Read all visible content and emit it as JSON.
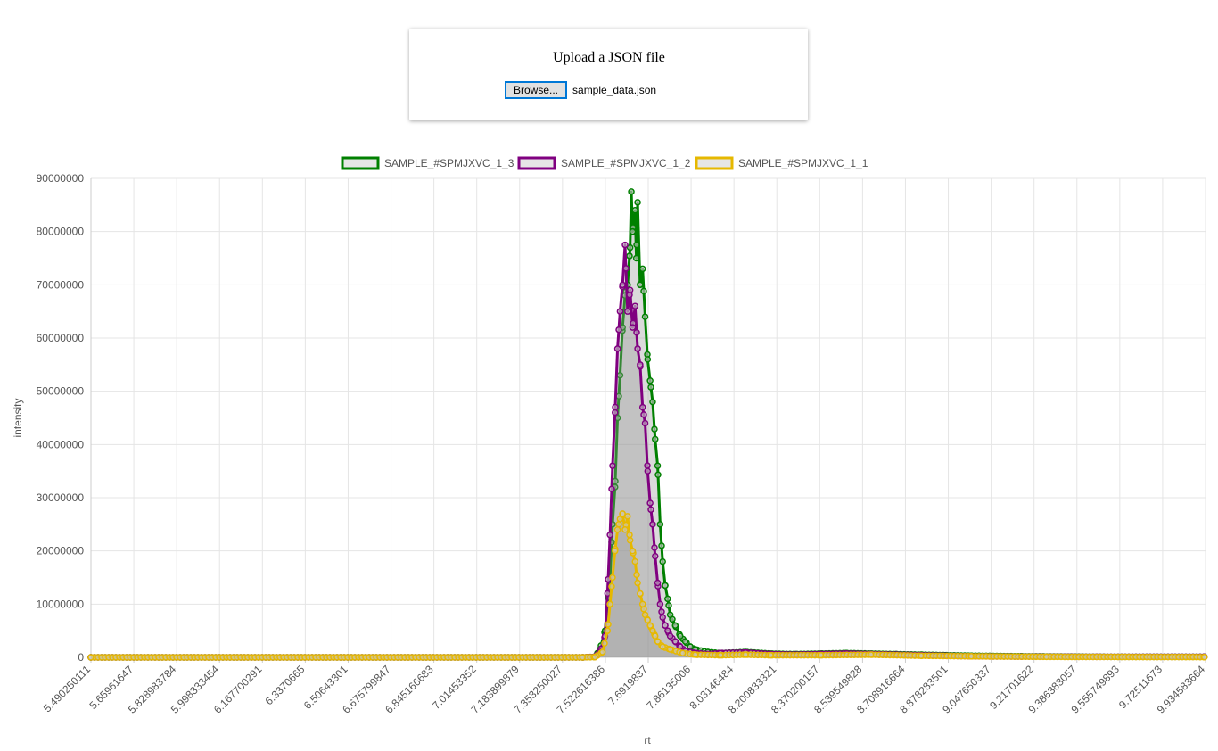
{
  "upload": {
    "title": "Upload a JSON file",
    "browse_label": "Browse...",
    "file_name": "sample_data.json"
  },
  "chart_data": {
    "type": "line",
    "xlabel": "rt",
    "ylabel": "intensity",
    "ylim": [
      0,
      90000000
    ],
    "yticks": [
      0,
      10000000,
      20000000,
      30000000,
      40000000,
      50000000,
      60000000,
      70000000,
      80000000,
      90000000
    ],
    "xlim": [
      5.490250111,
      9.934583664
    ],
    "xtick_labels": [
      "5.490250111",
      "5.65961647",
      "5.828983784",
      "5.998333454",
      "6.167700291",
      "6.3370665",
      "6.50643301",
      "6.675799847",
      "6.845166683",
      "7.01453352",
      "7.183899879",
      "7.353250027",
      "7.522616386",
      "7.6919837",
      "7.86135006",
      "8.03146484",
      "8.200833321",
      "8.370200157",
      "8.539549828",
      "8.708916664",
      "8.878283501",
      "9.047650337",
      "9.21701622",
      "9.386383057",
      "9.555749893",
      "9.72511673",
      "9.934583664"
    ],
    "legend_position": "top-center",
    "grid": true,
    "series": [
      {
        "name": "SAMPLE_#SPMJXVC_1_3",
        "color": "#008000",
        "points": [
          [
            5.49,
            0
          ],
          [
            7.45,
            0
          ],
          [
            7.5,
            100000
          ],
          [
            7.52,
            1500000
          ],
          [
            7.54,
            5000000
          ],
          [
            7.56,
            15000000
          ],
          [
            7.57,
            25000000
          ],
          [
            7.58,
            32000000
          ],
          [
            7.59,
            45000000
          ],
          [
            7.6,
            53000000
          ],
          [
            7.61,
            62000000
          ],
          [
            7.62,
            68000000
          ],
          [
            7.63,
            70000000
          ],
          [
            7.64,
            77000000
          ],
          [
            7.645,
            87500000
          ],
          [
            7.65,
            80000000
          ],
          [
            7.66,
            84000000
          ],
          [
            7.665,
            75000000
          ],
          [
            7.67,
            85500000
          ],
          [
            7.68,
            70000000
          ],
          [
            7.69,
            73000000
          ],
          [
            7.7,
            64000000
          ],
          [
            7.71,
            56000000
          ],
          [
            7.72,
            52000000
          ],
          [
            7.73,
            48000000
          ],
          [
            7.74,
            41000000
          ],
          [
            7.75,
            36000000
          ],
          [
            7.76,
            25000000
          ],
          [
            7.77,
            18000000
          ],
          [
            7.78,
            13500000
          ],
          [
            7.79,
            11000000
          ],
          [
            7.8,
            8000000
          ],
          [
            7.82,
            6000000
          ],
          [
            7.84,
            4000000
          ],
          [
            7.86,
            3000000
          ],
          [
            7.88,
            2000000
          ],
          [
            7.9,
            1500000
          ],
          [
            7.95,
            1000000
          ],
          [
            8.0,
            800000
          ],
          [
            8.1,
            1000000
          ],
          [
            8.2,
            700000
          ],
          [
            8.3,
            600000
          ],
          [
            8.4,
            700000
          ],
          [
            8.5,
            800000
          ],
          [
            8.6,
            700000
          ],
          [
            8.7,
            600000
          ],
          [
            8.8,
            500000
          ],
          [
            8.9,
            400000
          ],
          [
            9.0,
            300000
          ],
          [
            9.2,
            200000
          ],
          [
            9.4,
            150000
          ],
          [
            9.6,
            100000
          ],
          [
            9.93,
            100000
          ]
        ]
      },
      {
        "name": "SAMPLE_#SPMJXVC_1_2",
        "color": "#800080",
        "points": [
          [
            5.49,
            0
          ],
          [
            7.45,
            0
          ],
          [
            7.5,
            100000
          ],
          [
            7.52,
            1000000
          ],
          [
            7.54,
            4000000
          ],
          [
            7.55,
            12000000
          ],
          [
            7.56,
            23000000
          ],
          [
            7.57,
            36000000
          ],
          [
            7.58,
            46000000
          ],
          [
            7.59,
            58000000
          ],
          [
            7.6,
            65000000
          ],
          [
            7.61,
            70000000
          ],
          [
            7.62,
            77500000
          ],
          [
            7.63,
            65000000
          ],
          [
            7.64,
            69000000
          ],
          [
            7.65,
            62000000
          ],
          [
            7.66,
            66000000
          ],
          [
            7.67,
            58000000
          ],
          [
            7.68,
            55000000
          ],
          [
            7.69,
            47000000
          ],
          [
            7.7,
            44000000
          ],
          [
            7.71,
            35000000
          ],
          [
            7.72,
            29000000
          ],
          [
            7.73,
            25000000
          ],
          [
            7.74,
            19000000
          ],
          [
            7.75,
            14000000
          ],
          [
            7.76,
            10000000
          ],
          [
            7.77,
            7500000
          ],
          [
            7.78,
            6000000
          ],
          [
            7.79,
            5000000
          ],
          [
            7.8,
            4000000
          ],
          [
            7.82,
            3000000
          ],
          [
            7.84,
            2000000
          ],
          [
            7.86,
            1200000
          ],
          [
            7.9,
            800000
          ],
          [
            7.95,
            600000
          ],
          [
            8.0,
            800000
          ],
          [
            8.1,
            900000
          ],
          [
            8.2,
            600000
          ],
          [
            8.3,
            500000
          ],
          [
            8.4,
            600000
          ],
          [
            8.5,
            700000
          ],
          [
            8.6,
            600000
          ],
          [
            8.7,
            500000
          ],
          [
            8.8,
            400000
          ],
          [
            8.9,
            300000
          ],
          [
            9.0,
            200000
          ],
          [
            9.2,
            150000
          ],
          [
            9.5,
            100000
          ],
          [
            9.93,
            100000
          ]
        ]
      },
      {
        "name": "SAMPLE_#SPMJXVC_1_1",
        "color": "#e6b800",
        "points": [
          [
            5.49,
            0
          ],
          [
            7.45,
            0
          ],
          [
            7.5,
            50000
          ],
          [
            7.53,
            1000000
          ],
          [
            7.55,
            5000000
          ],
          [
            7.56,
            10000000
          ],
          [
            7.57,
            15000000
          ],
          [
            7.58,
            20000000
          ],
          [
            7.59,
            24000000
          ],
          [
            7.6,
            26000000
          ],
          [
            7.61,
            27000000
          ],
          [
            7.62,
            24000000
          ],
          [
            7.63,
            26500000
          ],
          [
            7.64,
            22000000
          ],
          [
            7.65,
            20000000
          ],
          [
            7.66,
            18000000
          ],
          [
            7.67,
            14000000
          ],
          [
            7.68,
            12000000
          ],
          [
            7.69,
            10000000
          ],
          [
            7.7,
            8000000
          ],
          [
            7.71,
            7000000
          ],
          [
            7.72,
            6000000
          ],
          [
            7.73,
            5000000
          ],
          [
            7.74,
            4000000
          ],
          [
            7.75,
            3000000
          ],
          [
            7.77,
            2000000
          ],
          [
            7.8,
            1500000
          ],
          [
            7.85,
            800000
          ],
          [
            7.9,
            500000
          ],
          [
            8.0,
            400000
          ],
          [
            8.1,
            500000
          ],
          [
            8.2,
            400000
          ],
          [
            8.4,
            400000
          ],
          [
            8.6,
            500000
          ],
          [
            8.8,
            300000
          ],
          [
            9.0,
            200000
          ],
          [
            9.3,
            100000
          ],
          [
            9.93,
            50000
          ]
        ]
      }
    ]
  }
}
